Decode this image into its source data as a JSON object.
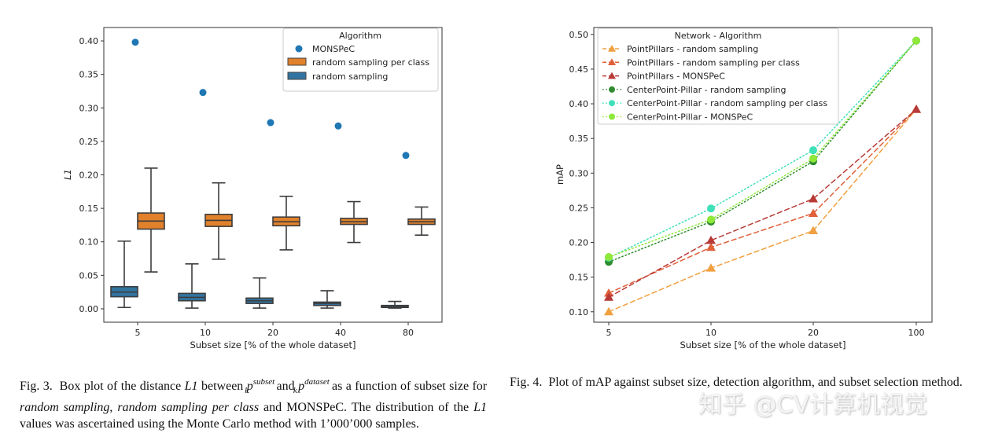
{
  "chart_data": [
    {
      "type": "box",
      "figure": "fig3",
      "xlabel": "Subset size [% of the whole dataset]",
      "ylabel": "L1",
      "ylim": [
        -0.02,
        0.42
      ],
      "yticks": [
        "0.00",
        "0.05",
        "0.10",
        "0.15",
        "0.20",
        "0.25",
        "0.30",
        "0.35",
        "0.40"
      ],
      "categories": [
        "5",
        "10",
        "20",
        "40",
        "80"
      ],
      "legend_title": "Algorithm",
      "legend": [
        "MONSPeC",
        "random sampling per class",
        "random sampling"
      ],
      "colors": {
        "monspec": "#1f77b4",
        "per_class": "#e1812c",
        "random": "#3274a1"
      },
      "monspec_points": [
        0.398,
        0.323,
        0.278,
        0.273,
        0.229
      ],
      "boxes_random_sampling": [
        {
          "min": 0.002,
          "q1": 0.018,
          "median": 0.025,
          "q3": 0.033,
          "max": 0.101
        },
        {
          "min": 0.001,
          "q1": 0.012,
          "median": 0.017,
          "q3": 0.023,
          "max": 0.067
        },
        {
          "min": 0.001,
          "q1": 0.008,
          "median": 0.012,
          "q3": 0.016,
          "max": 0.046
        },
        {
          "min": 0.001,
          "q1": 0.005,
          "median": 0.008,
          "q3": 0.01,
          "max": 0.027
        },
        {
          "min": 0.001,
          "q1": 0.002,
          "median": 0.003,
          "q3": 0.005,
          "max": 0.011
        }
      ],
      "boxes_random_sampling_per_class": [
        {
          "min": 0.055,
          "q1": 0.119,
          "median": 0.131,
          "q3": 0.143,
          "max": 0.21
        },
        {
          "min": 0.074,
          "q1": 0.123,
          "median": 0.132,
          "q3": 0.141,
          "max": 0.188
        },
        {
          "min": 0.088,
          "q1": 0.124,
          "median": 0.13,
          "q3": 0.137,
          "max": 0.168
        },
        {
          "min": 0.099,
          "q1": 0.126,
          "median": 0.13,
          "q3": 0.135,
          "max": 0.16
        },
        {
          "min": 0.11,
          "q1": 0.126,
          "median": 0.13,
          "q3": 0.134,
          "max": 0.152
        }
      ]
    },
    {
      "type": "line",
      "figure": "fig4",
      "xlabel": "Subset size [% of the whole dataset]",
      "ylabel": "mAP",
      "ylim": [
        0.085,
        0.51
      ],
      "yticks": [
        "0.10",
        "0.15",
        "0.20",
        "0.25",
        "0.30",
        "0.35",
        "0.40",
        "0.45",
        "0.50"
      ],
      "categories": [
        "5",
        "10",
        "20",
        "100"
      ],
      "legend_title": "Network - Algorithm",
      "series": [
        {
          "name": "PointPillars - random sampling",
          "values": [
            0.1,
            0.163,
            0.217,
            0.392
          ],
          "color": "#f0a040",
          "marker": "triangle",
          "dash": "dashed"
        },
        {
          "name": "PointPillars - random sampling per class",
          "values": [
            0.127,
            0.193,
            0.242,
            0.392
          ],
          "color": "#e0603a",
          "marker": "triangle",
          "dash": "dashed"
        },
        {
          "name": "PointPillars - MONSPeC",
          "values": [
            0.121,
            0.203,
            0.263,
            0.392
          ],
          "color": "#b83a36",
          "marker": "triangle",
          "dash": "dashed"
        },
        {
          "name": "CenterPoint-Pillar - random sampling",
          "values": [
            0.172,
            0.23,
            0.317,
            0.491
          ],
          "color": "#2e8b2e",
          "marker": "circle",
          "dash": "dotted"
        },
        {
          "name": "CenterPoint-Pillar - random sampling per class",
          "values": [
            0.178,
            0.249,
            0.333,
            0.491
          ],
          "color": "#3ee0b8",
          "marker": "circle",
          "dash": "dotted"
        },
        {
          "name": "CenterPoint-Pillar - MONSPeC",
          "values": [
            0.179,
            0.233,
            0.321,
            0.491
          ],
          "color": "#8fe83a",
          "marker": "circle",
          "dash": "dotted"
        }
      ]
    }
  ],
  "captions": {
    "fig3_label": "Fig. 3.",
    "fig3_a": "Box plot of the distance",
    "fig3_l1": "L1",
    "fig3_b": "between",
    "fig3_p1": "p",
    "fig3_sup1": "subset",
    "fig3_k1": "k",
    "fig3_and": "and",
    "fig3_p2": "p",
    "fig3_sup2": "dataset",
    "fig3_k2": "k",
    "fig3_as": "as",
    "fig3_c": "a function of subset size for",
    "fig3_rs": "random sampling",
    "fig3_comma": ",",
    "fig3_rspc": "random sampling per class",
    "fig3_d": "and MONSPeC. The distribution of the",
    "fig3_l1b": "L1",
    "fig3_e": "values was ascertained using the Monte Carlo method with 1’000’000 samples.",
    "fig4_label": "Fig. 4.",
    "fig4_text": "Plot of mAP against subset size, detection algorithm, and subset selection method."
  },
  "watermark": "知乎 @CV计算机视觉"
}
